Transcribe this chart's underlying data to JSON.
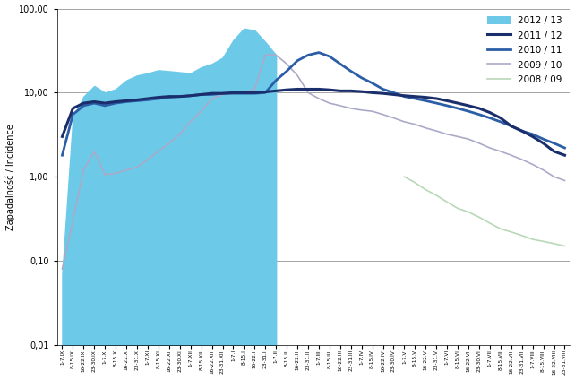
{
  "ylabel": "Zapadalność / Incidence",
  "ylim_log": [
    0.01,
    100.0
  ],
  "yticks": [
    0.01,
    0.1,
    1.0,
    10.0,
    100.0
  ],
  "ytick_labels": [
    "0,01",
    "0,10",
    "1,00",
    "10,00",
    "100,00"
  ],
  "legend_labels": [
    "2012 / 13",
    "2011 / 12",
    "2010 / 11",
    "2009 / 10",
    "2008 / 09"
  ],
  "fill_color": "#6CCAE8",
  "line_2011_12_color": "#1A2E6B",
  "line_2010_11_color": "#2B5EA7",
  "line_2009_10_color": "#AAAAC8",
  "line_2008_09_color": "#B8D8B8",
  "x_labels": [
    "1-7.IX",
    "8-15.IX",
    "16-22.IX",
    "23-30.IX",
    "1-7.X",
    "8-15.X",
    "16-22.X",
    "23-31.X",
    "1-7.XI",
    "8-15.XI",
    "16-22.XI",
    "23-30.XI",
    "1-7.XII",
    "8-15.XII",
    "16-22.XII",
    "23-31.XII",
    "1-7.I",
    "8-15.I",
    "16-22.I",
    "23-31.I",
    "1-7.II",
    "8-15.II",
    "16-22.II",
    "23-31.II",
    "1-7.III",
    "8-15.III",
    "16-22.III",
    "23-31.III",
    "1-7.IV",
    "8-15.IV",
    "16-22.IV",
    "23-30.IV",
    "1-7.V",
    "8-15.V",
    "16-22.V",
    "23-31.V",
    "1-7.VI",
    "8-15.VI",
    "16-22.VI",
    "23-30.VI",
    "1-7.VII",
    "8-15.VII",
    "16-22.VII",
    "23-31.VII",
    "1-7.VIII",
    "8-15.VIII",
    "16-22.VIII",
    "23-31.VIII"
  ],
  "series_2012_13": [
    0.07,
    5.0,
    9.0,
    12.0,
    10.0,
    11.0,
    14.0,
    16.0,
    17.0,
    18.5,
    18.0,
    17.5,
    17.0,
    20.0,
    22.0,
    26.0,
    42.0,
    58.0,
    55.0,
    40.0,
    28.0,
    null,
    null,
    null,
    null,
    null,
    null,
    null,
    null,
    null,
    null,
    null,
    null,
    null,
    null,
    null,
    null,
    null,
    null,
    null,
    null,
    null,
    null,
    null,
    null,
    null,
    null,
    null
  ],
  "series_2011_12": [
    3.0,
    6.5,
    7.5,
    7.8,
    7.5,
    7.8,
    8.0,
    8.2,
    8.5,
    8.8,
    9.0,
    9.0,
    9.2,
    9.5,
    9.8,
    9.8,
    10.0,
    10.0,
    10.0,
    10.2,
    10.5,
    10.8,
    11.0,
    11.0,
    11.0,
    10.8,
    10.5,
    10.5,
    10.3,
    10.0,
    9.8,
    9.5,
    9.2,
    9.0,
    8.8,
    8.5,
    8.0,
    7.5,
    7.0,
    6.5,
    5.8,
    5.0,
    4.0,
    3.5,
    3.0,
    2.5,
    2.0,
    1.8
  ],
  "series_2010_11": [
    1.8,
    5.5,
    7.0,
    7.5,
    7.0,
    7.5,
    7.8,
    8.0,
    8.2,
    8.5,
    8.8,
    9.0,
    9.2,
    9.5,
    9.5,
    9.8,
    9.8,
    9.8,
    9.8,
    10.0,
    14.0,
    18.0,
    24.0,
    28.0,
    30.0,
    27.0,
    22.0,
    18.0,
    15.0,
    13.0,
    11.0,
    10.0,
    9.0,
    8.5,
    8.0,
    7.5,
    7.0,
    6.5,
    6.0,
    5.5,
    5.0,
    4.5,
    4.0,
    3.5,
    3.2,
    2.8,
    2.5,
    2.2
  ],
  "series_2009_10": [
    0.08,
    0.3,
    1.2,
    2.0,
    1.05,
    1.1,
    1.2,
    1.3,
    1.6,
    2.0,
    2.5,
    3.2,
    4.5,
    6.0,
    8.5,
    9.5,
    9.8,
    10.0,
    11.0,
    28.0,
    28.0,
    22.0,
    16.0,
    10.0,
    8.5,
    7.5,
    7.0,
    6.5,
    6.2,
    6.0,
    5.5,
    5.0,
    4.5,
    4.2,
    3.8,
    3.5,
    3.2,
    3.0,
    2.8,
    2.5,
    2.2,
    2.0,
    1.8,
    1.6,
    1.4,
    1.2,
    1.0,
    0.9
  ],
  "series_2008_09": [
    null,
    null,
    null,
    null,
    null,
    null,
    null,
    null,
    null,
    null,
    null,
    null,
    null,
    null,
    null,
    null,
    null,
    null,
    null,
    null,
    null,
    null,
    null,
    null,
    null,
    null,
    null,
    null,
    null,
    null,
    null,
    null,
    null,
    null,
    null,
    null,
    null,
    null,
    null,
    null,
    null,
    null,
    null,
    null,
    null,
    null,
    null,
    null
  ],
  "series_2008_09_partial": [
    32,
    33,
    34,
    35,
    36,
    37,
    38,
    39,
    40,
    41,
    42,
    43,
    44,
    45,
    46,
    47
  ],
  "series_2008_09_values": [
    1.0,
    0.85,
    0.7,
    0.6,
    0.5,
    0.42,
    0.38,
    0.33,
    0.28,
    0.24,
    0.22,
    0.2,
    0.18,
    0.17,
    0.16,
    0.15
  ]
}
